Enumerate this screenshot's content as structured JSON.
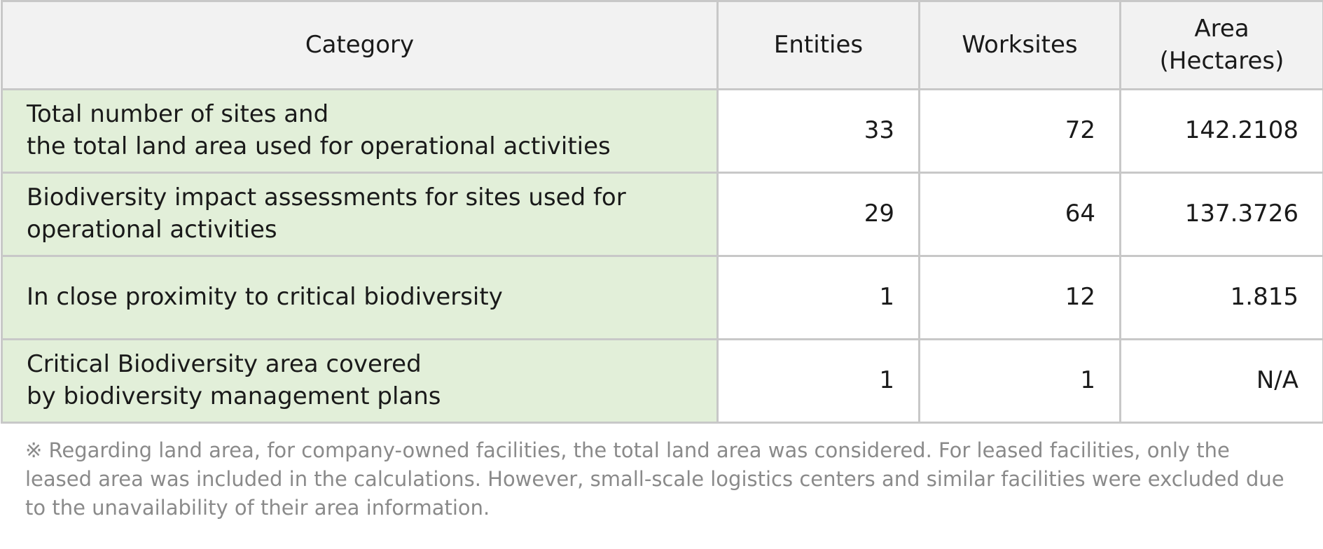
{
  "table": {
    "header": [
      "Category",
      "Entities",
      "Worksites",
      "Area\n(Hectares)"
    ],
    "rows": [
      [
        "Total number of sites and\nthe total land area used for operational activities",
        "33",
        "72",
        "142.2108"
      ],
      [
        "Biodiversity impact assessments for sites used for\noperational activities",
        "29",
        "64",
        "137.3726"
      ],
      [
        "In close proximity to critical biodiversity",
        "1",
        "12",
        "1.815"
      ],
      [
        "Critical Biodiversity area covered\nby biodiversity management plans",
        "1",
        "1",
        "N/A"
      ]
    ]
  },
  "note": "※  Regarding land area, for company-owned facilities, the total land area was considered. For leased facilities, only the leased area was included in the calculations. However, small-scale logistics centers and similar facilities were excluded due to the unavailability of their area information."
}
